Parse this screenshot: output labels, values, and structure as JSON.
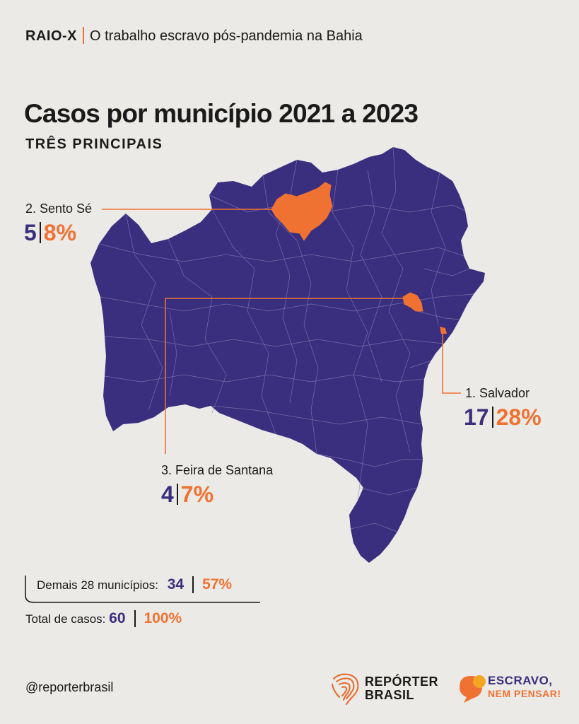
{
  "header": {
    "tag": "RAIO-X",
    "text": "O trabalho escravo pós-pandemia na Bahia"
  },
  "title": "Casos por município 2021 a 2023",
  "subtitle": "TRÊS PRINCIPAIS",
  "colors": {
    "state": "#3a2e7e",
    "highlight": "#f07232",
    "background": "#ebeae6"
  },
  "highlights": [
    {
      "rank_name": "2. Sento Sé",
      "cases": "5",
      "percent": "8%"
    },
    {
      "rank_name": "1. Salvador",
      "cases": "17",
      "percent": "28%"
    },
    {
      "rank_name": "3. Feira de Santana",
      "cases": "4",
      "percent": "7%"
    }
  ],
  "summary": {
    "others_label": "Demais 28 municípios:",
    "others_cases": "34",
    "others_percent": "57%",
    "total_label": "Total de casos:",
    "total_cases": "60",
    "total_percent": "100%"
  },
  "footer": {
    "handle": "@reporterbrasil",
    "logo1_line1": "REPÓRTER",
    "logo1_line2": "BRASIL",
    "logo2_line1": "ESCRAVO,",
    "logo2_line2": "NEM PENSAR!",
    "logo1_icon": "fingerprint-map-icon",
    "logo2_icon": "speech-bubble-icon"
  }
}
